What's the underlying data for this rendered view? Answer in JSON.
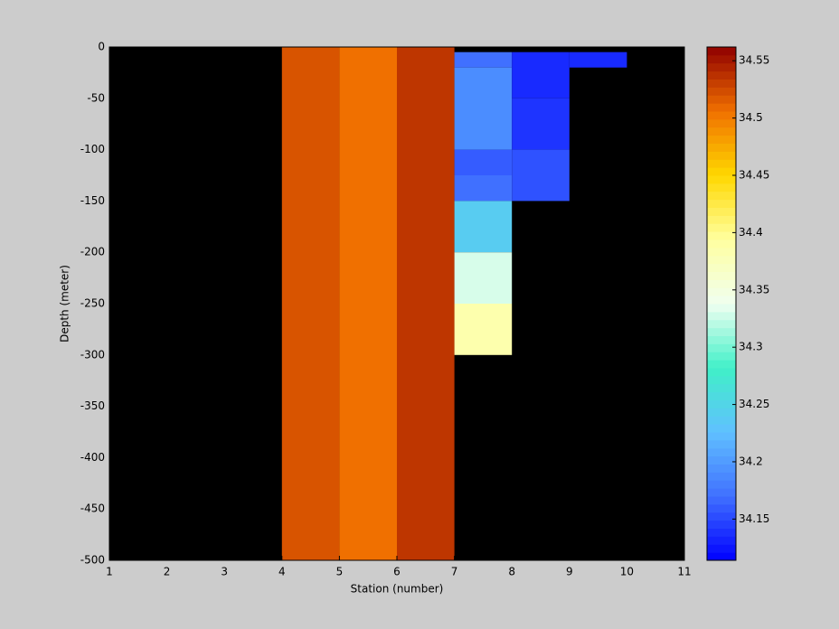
{
  "chart_data": {
    "type": "heatmap",
    "xlabel": "Station (number)",
    "ylabel": "Depth (meter)",
    "xlim": [
      1,
      11
    ],
    "xticks": [
      1,
      2,
      3,
      4,
      5,
      6,
      7,
      8,
      9,
      10,
      11
    ],
    "ylim": [
      -500,
      0
    ],
    "yticks": [
      0,
      -50,
      -100,
      -150,
      -200,
      -250,
      -300,
      -350,
      -400,
      -450,
      -500
    ],
    "background": "#000000",
    "clim": [
      34.114,
      34.562
    ],
    "cticks": [
      34.15,
      34.2,
      34.25,
      34.3,
      34.35,
      34.4,
      34.45,
      34.5,
      34.55
    ],
    "colormap": [
      "#0000ff",
      "#4070ff",
      "#60c0ff",
      "#40f0c8",
      "#f0fff0",
      "#ffffa0",
      "#ffd800",
      "#f07000",
      "#900000"
    ],
    "cells": [
      {
        "x": [
          4,
          5
        ],
        "y": [
          0,
          -500
        ],
        "value": 34.52
      },
      {
        "x": [
          5,
          6
        ],
        "y": [
          0,
          -500
        ],
        "value": 34.506
      },
      {
        "x": [
          6,
          7
        ],
        "y": [
          0,
          -500
        ],
        "value": 34.535
      },
      {
        "x": [
          7,
          8
        ],
        "y": [
          -5,
          -20
        ],
        "value": 34.17
      },
      {
        "x": [
          7,
          8
        ],
        "y": [
          -20,
          -100
        ],
        "value": 34.19
      },
      {
        "x": [
          7,
          8
        ],
        "y": [
          -100,
          -125
        ],
        "value": 34.16
      },
      {
        "x": [
          7,
          8
        ],
        "y": [
          -125,
          -150
        ],
        "value": 34.17
      },
      {
        "x": [
          7,
          8
        ],
        "y": [
          -150,
          -200
        ],
        "value": 34.24
      },
      {
        "x": [
          7,
          8
        ],
        "y": [
          -200,
          -250
        ],
        "value": 34.33
      },
      {
        "x": [
          7,
          8
        ],
        "y": [
          -250,
          -300
        ],
        "value": 34.385
      },
      {
        "x": [
          8,
          9
        ],
        "y": [
          -5,
          -50
        ],
        "value": 34.135
      },
      {
        "x": [
          8,
          9
        ],
        "y": [
          -50,
          -100
        ],
        "value": 34.14
      },
      {
        "x": [
          8,
          9
        ],
        "y": [
          -100,
          -150
        ],
        "value": 34.155
      },
      {
        "x": [
          9,
          10
        ],
        "y": [
          -5,
          -20
        ],
        "value": 34.135
      }
    ]
  }
}
